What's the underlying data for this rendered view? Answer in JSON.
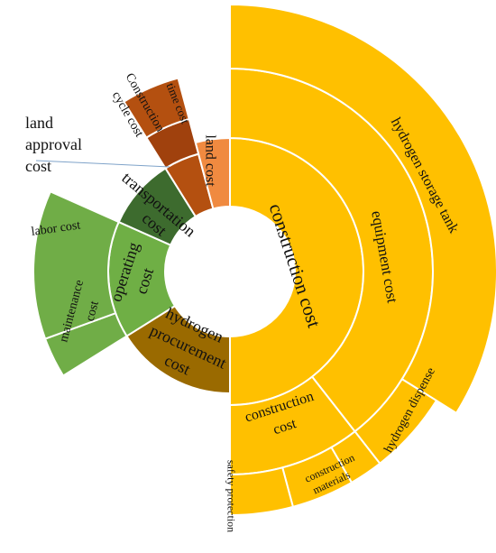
{
  "chart_data": {
    "type": "sunburst",
    "title": "",
    "colors": {
      "construction": "#FFC000",
      "hydrogen_procurement": "#9A6A00",
      "operating": "#6FAF45",
      "operating_light": "#70AD47",
      "transportation": "#3D6B2E",
      "land": "#F08A40",
      "time": "#B45010",
      "land_approval": "#A0410D"
    },
    "nodes": [
      {
        "id": "construction",
        "label": "construction cost",
        "ring": 1,
        "start": 0,
        "end": 180,
        "color": "construction"
      },
      {
        "id": "h2proc",
        "label": "hydrogen procurement cost",
        "ring": 1,
        "start": 180,
        "end": 238,
        "color": "hydrogen_procurement"
      },
      {
        "id": "operating",
        "label": "operating cost",
        "ring": 1,
        "start": 238,
        "end": 294,
        "color": "operating"
      },
      {
        "id": "transport",
        "label": "transportation cost",
        "ring": 1,
        "start": 294,
        "end": 328,
        "color": "transportation"
      },
      {
        "id": "timecost",
        "label": "Construction cycle cost",
        "ring": 1,
        "start": 328,
        "end": 345,
        "color": "time"
      },
      {
        "id": "landcost",
        "label": "land cost",
        "ring": 1,
        "start": 345,
        "end": 360,
        "color": "land"
      },
      {
        "id": "equipment",
        "label": "equipment cost",
        "ring": 2,
        "start": 0,
        "end": 142,
        "color": "construction"
      },
      {
        "id": "constr2",
        "label": "construction cost",
        "ring": 2,
        "start": 142,
        "end": 180,
        "color": "construction"
      },
      {
        "id": "labor",
        "label": "labor cost",
        "ring": 2,
        "start": 238,
        "end": 250,
        "color": "operating_light",
        "outerRing": 4
      },
      {
        "id": "maint",
        "label": "maintenance cost",
        "ring": 2,
        "start": 250,
        "end": 294,
        "color": "operating_light",
        "outerRing": 4
      },
      {
        "id": "landapp",
        "label": "land approval cost",
        "ring": 2,
        "start": 328,
        "end": 345,
        "color": "land_approval"
      },
      {
        "id": "timecost2",
        "label": "time cost",
        "ring": 2,
        "start": 328,
        "end": 345,
        "color": "time",
        "ringOverride": 3
      },
      {
        "id": "tank",
        "label": "hydrogen storage tank",
        "ring": 3,
        "start": 0,
        "end": 122,
        "color": "construction",
        "outerRing": 5
      },
      {
        "id": "dispenser",
        "label": "hydrogen dispense",
        "ring": 3,
        "start": 122,
        "end": 142,
        "color": "construction",
        "outerRing": 4
      },
      {
        "id": "safety",
        "label": "safety protection",
        "ring": 3,
        "start": 165,
        "end": 180,
        "color": "construction",
        "outerRing": 4
      },
      {
        "id": "materials",
        "label": "construction materials",
        "ring": 3,
        "start": 150,
        "end": 165,
        "color": "construction",
        "outerRing": 4
      }
    ],
    "annotation": "land approval cost"
  }
}
